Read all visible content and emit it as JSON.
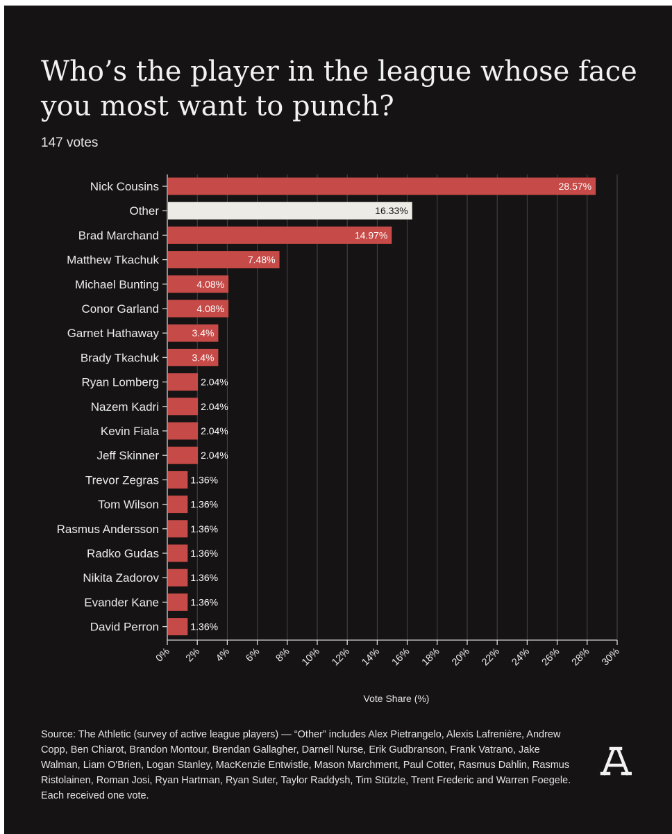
{
  "title": "Who’s the player in the league whose face you most want to punch?",
  "subtitle": "147 votes",
  "source": "Source: The Athletic (survey of active league players) — “Other” includes Alex Pietrangelo, Alexis Lafrenière, Andrew Copp, Ben Chiarot, Brandon Montour, Brendan Gallagher, Darnell Nurse, Erik Gudbranson, Frank Vatrano, Jake Walman, Liam O'Brien, Logan Stanley, MacKenzie Entwistle, Mason Marchment, Paul Cotter, Rasmus Dahlin, Rasmus Ristolainen, Roman Josi, Ryan Hartman, Ryan Suter, Taylor Raddysh, Tim Stützle, Trent Frederic and Warren Foegele. Each received one vote.",
  "logo": "A",
  "chart_data": {
    "type": "bar",
    "orientation": "horizontal",
    "xlabel": "Vote Share (%)",
    "ylabel": "",
    "xlim": [
      0,
      30
    ],
    "ticks": [
      0,
      2,
      4,
      6,
      8,
      10,
      12,
      14,
      16,
      18,
      20,
      22,
      24,
      26,
      28,
      30
    ],
    "tick_labels": [
      "0%",
      "2%",
      "4%",
      "6%",
      "8%",
      "10%",
      "12%",
      "14%",
      "16%",
      "18%",
      "20%",
      "22%",
      "24%",
      "26%",
      "28%",
      "30%"
    ],
    "grid": true,
    "categories": [
      "Nick Cousins",
      "Other",
      "Brad Marchand",
      "Matthew Tkachuk",
      "Michael Bunting",
      "Conor Garland",
      "Garnet Hathaway",
      "Brady Tkachuk",
      "Ryan Lomberg",
      "Nazem Kadri",
      "Kevin Fiala",
      "Jeff Skinner",
      "Trevor Zegras",
      "Tom Wilson",
      "Rasmus Andersson",
      "Radko Gudas",
      "Nikita Zadorov",
      "Evander Kane",
      "David Perron"
    ],
    "values": [
      28.57,
      16.33,
      14.97,
      7.48,
      4.08,
      4.08,
      3.4,
      3.4,
      2.04,
      2.04,
      2.04,
      2.04,
      1.36,
      1.36,
      1.36,
      1.36,
      1.36,
      1.36,
      1.36
    ],
    "value_labels": [
      "28.57%",
      "16.33%",
      "14.97%",
      "7.48%",
      "4.08%",
      "4.08%",
      "3.4%",
      "3.4%",
      "2.04%",
      "2.04%",
      "2.04%",
      "2.04%",
      "1.36%",
      "1.36%",
      "1.36%",
      "1.36%",
      "1.36%",
      "1.36%",
      "1.36%"
    ],
    "bar_color": "#c64a47",
    "highlight_color": "#ecebe6",
    "highlight_category": "Other",
    "background_color": "#151313"
  }
}
